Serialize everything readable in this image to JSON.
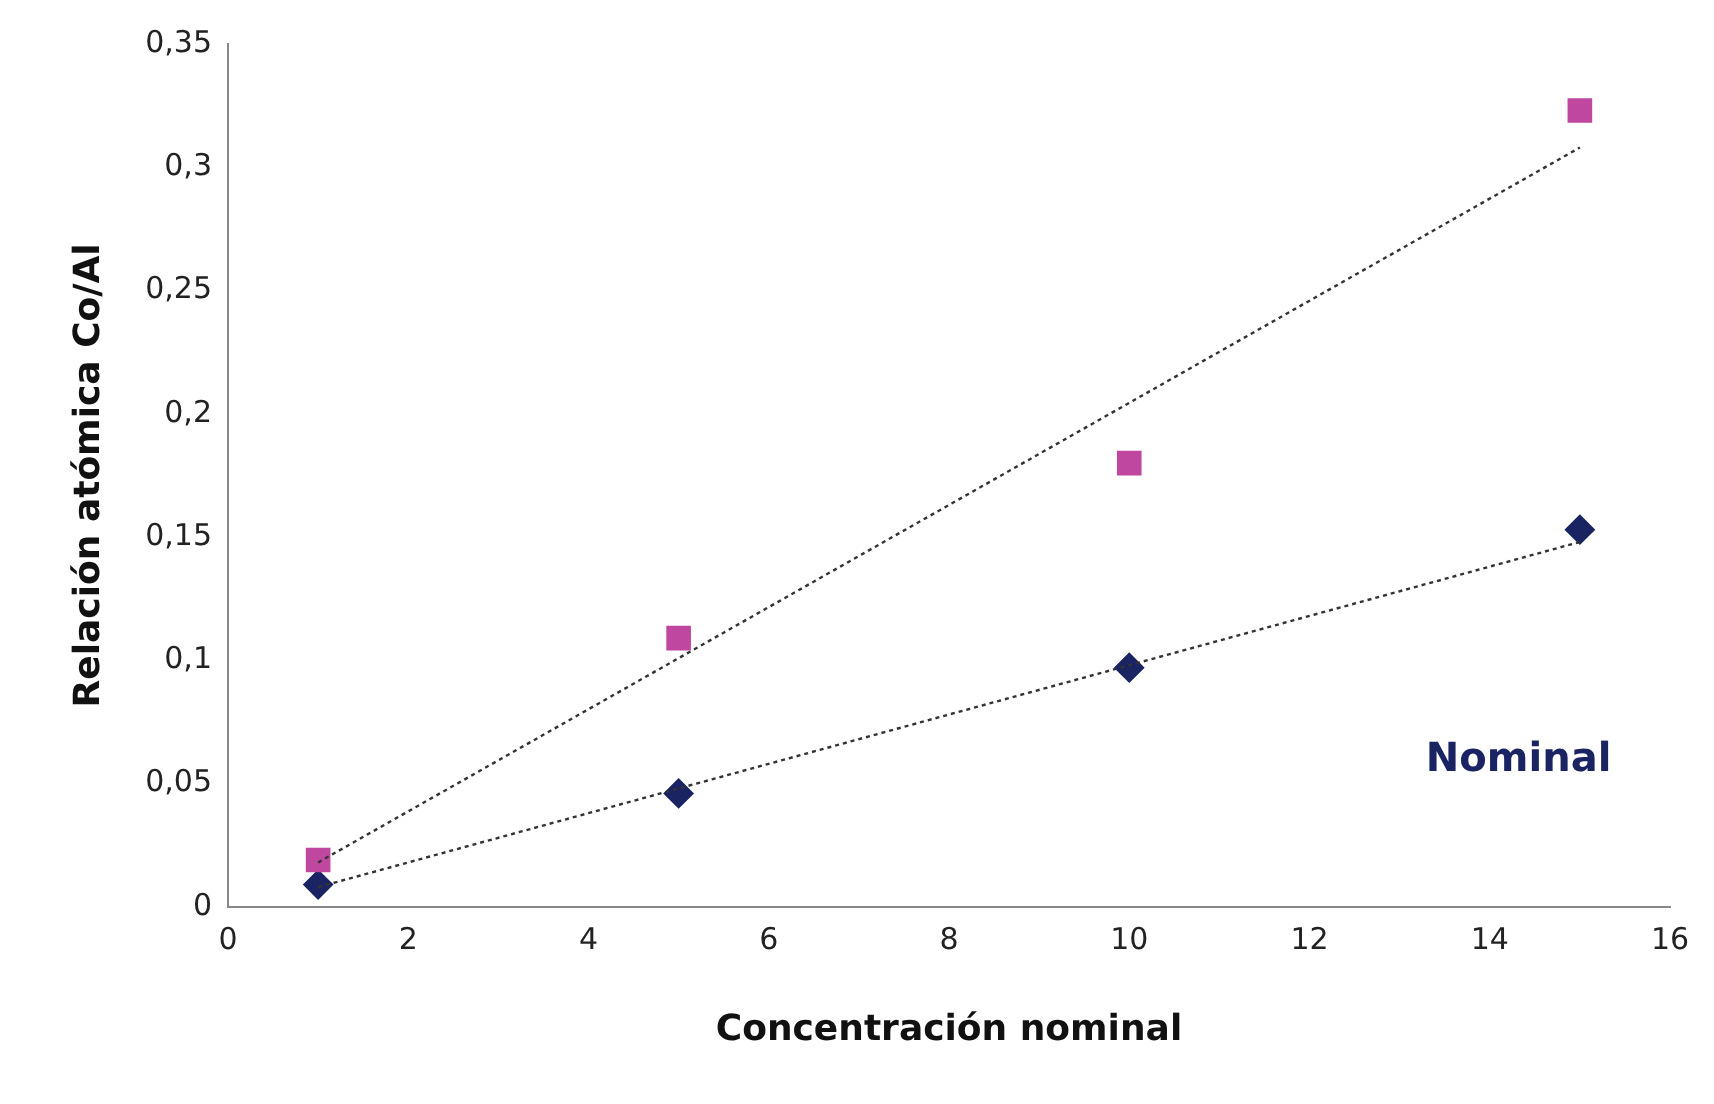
{
  "chart_data": {
    "type": "scatter",
    "xlabel": "Concentración nominal",
    "ylabel": "Relación atómica Co/Al",
    "xlim": [
      0,
      16
    ],
    "xticks": [
      0,
      2,
      4,
      6,
      8,
      10,
      12,
      14,
      16
    ],
    "ylim": [
      0,
      0.35
    ],
    "yticks": [
      0,
      {
        "value": 0.05,
        "label": "0,05"
      },
      {
        "value": 0.1,
        "label": "0,1"
      },
      {
        "value": 0.15,
        "label": "0,15"
      },
      {
        "value": 0.2,
        "label": "0,2"
      },
      {
        "value": 0.25,
        "label": "0,25"
      },
      {
        "value": 0.3,
        "label": "0,3"
      },
      {
        "value": 0.35,
        "label": "0,35"
      }
    ],
    "grid": false,
    "legend": false,
    "series": [
      {
        "type": "line",
        "color": "#333333",
        "x": [
          1,
          15
        ],
        "values": [
          0.018,
          0.308
        ],
        "line_style": "dotted",
        "marker": "none"
      },
      {
        "type": "line",
        "color": "#333333",
        "x": [
          1,
          15
        ],
        "values": [
          0.008,
          0.148
        ],
        "line_style": "dotted",
        "marker": "none"
      },
      {
        "type": "scatter",
        "color": "#c0479f",
        "x": [
          1,
          5,
          10,
          15
        ],
        "values": [
          0.019,
          0.109,
          0.18,
          0.323
        ],
        "marker": "square"
      },
      {
        "name": "Nominal",
        "type": "scatter",
        "color": "#1a2463",
        "x": [
          1,
          5,
          10,
          15
        ],
        "values": [
          0.009,
          0.046,
          0.097,
          0.153
        ],
        "marker": "diamond"
      }
    ]
  }
}
